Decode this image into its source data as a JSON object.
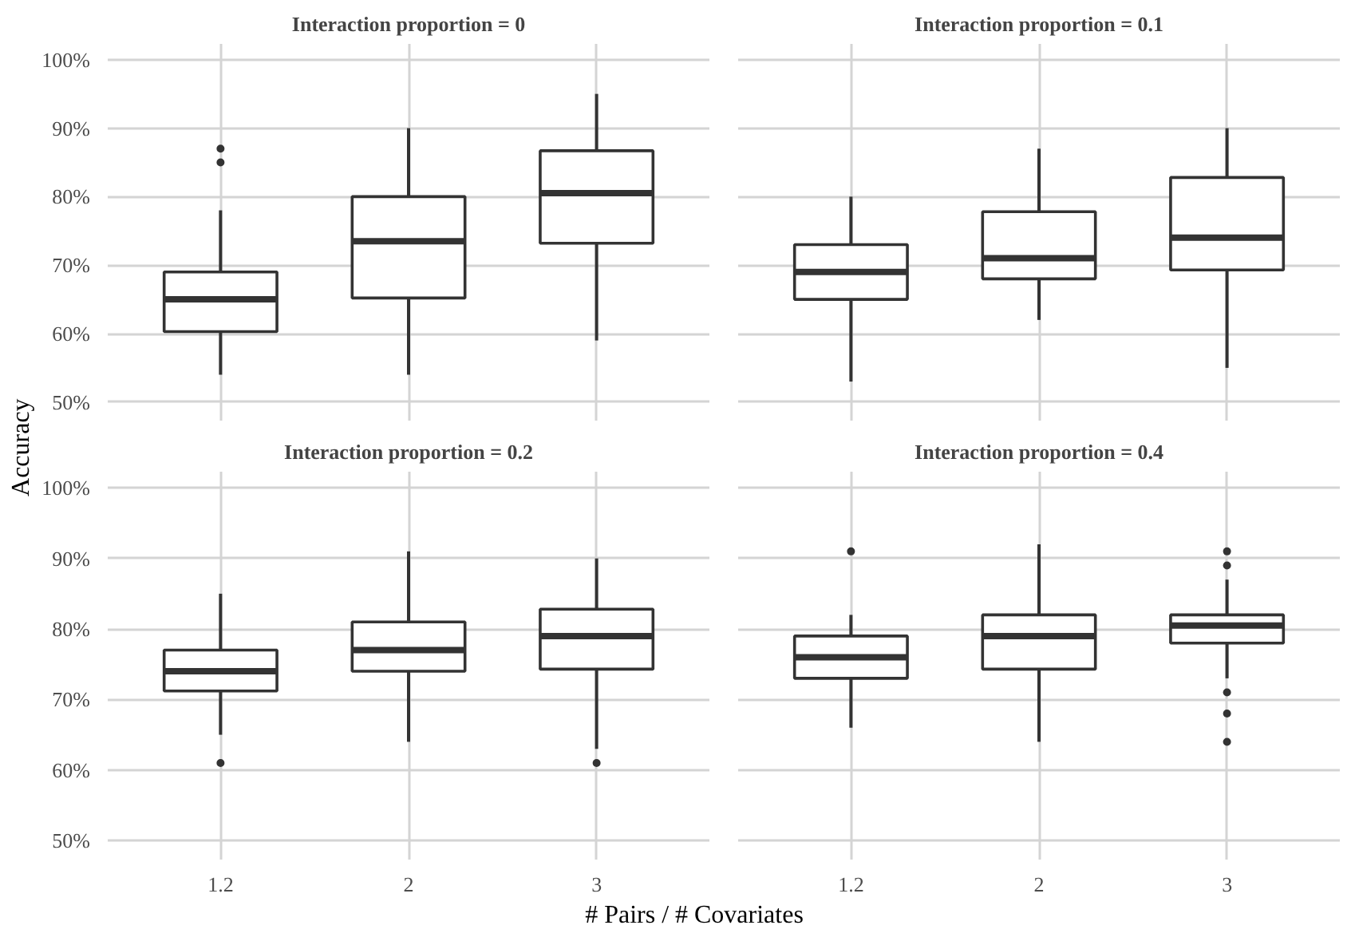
{
  "chart_data": [
    {
      "type": "box",
      "title": "Interaction proportion = 0",
      "ylabel": "Accuracy",
      "categories": [
        "1.2",
        "2",
        "3"
      ],
      "ylim": [
        47.3,
        102.3
      ],
      "yticks": [
        {
          "value": 50,
          "label": "50%"
        },
        {
          "value": 60,
          "label": "60%"
        },
        {
          "value": 70,
          "label": "70%"
        },
        {
          "value": 80,
          "label": "80%"
        },
        {
          "value": 90,
          "label": "90%"
        },
        {
          "value": 100,
          "label": "100%"
        }
      ],
      "grid": true,
      "tick_labels": "y",
      "boxes": [
        {
          "low": 54,
          "q1": 60.3,
          "median": 65,
          "q3": 69,
          "high": 78,
          "outliers": [
            85,
            87
          ]
        },
        {
          "low": 54,
          "q1": 65.2,
          "median": 73.5,
          "q3": 80,
          "high": 90
        },
        {
          "low": 59,
          "q1": 73.2,
          "median": 80.5,
          "q3": 86.7,
          "high": 95
        }
      ]
    },
    {
      "type": "box",
      "title": "Interaction proportion = 0.1",
      "categories": [
        "1.2",
        "2",
        "3"
      ],
      "ylim": [
        47.3,
        102.3
      ],
      "yticks": [
        50,
        60,
        70,
        80,
        90,
        100
      ],
      "grid": true,
      "tick_labels": false,
      "boxes": [
        {
          "low": 53,
          "q1": 65,
          "median": 69,
          "q3": 73,
          "high": 80
        },
        {
          "low": 62,
          "q1": 68,
          "median": 71,
          "q3": 77.8,
          "high": 87
        },
        {
          "low": 55,
          "q1": 69.3,
          "median": 74,
          "q3": 82.8,
          "high": 90
        }
      ]
    },
    {
      "type": "box",
      "title": "Interaction proportion = 0.2",
      "xlabel": "# Pairs / # Covariates",
      "categories": [
        "1.2",
        "2",
        "3"
      ],
      "ylim": [
        47.3,
        102.3
      ],
      "yticks": [
        {
          "value": 50,
          "label": "50%"
        },
        {
          "value": 60,
          "label": "60%"
        },
        {
          "value": 70,
          "label": "70%"
        },
        {
          "value": 80,
          "label": "80%"
        },
        {
          "value": 90,
          "label": "90%"
        },
        {
          "value": 100,
          "label": "100%"
        }
      ],
      "grid": true,
      "boxes": [
        {
          "low": 65,
          "q1": 71.2,
          "median": 74,
          "q3": 77,
          "high": 85,
          "outliers": [
            61
          ]
        },
        {
          "low": 64,
          "q1": 74,
          "median": 77,
          "q3": 81,
          "high": 91
        },
        {
          "low": 63,
          "q1": 74.3,
          "median": 79,
          "q3": 82.8,
          "high": 90,
          "outliers": [
            61
          ]
        }
      ]
    },
    {
      "type": "box",
      "title": "Interaction proportion = 0.4",
      "categories": [
        "1.2",
        "2",
        "3"
      ],
      "ylim": [
        47.3,
        102.3
      ],
      "yticks": [
        50,
        60,
        70,
        80,
        90,
        100
      ],
      "grid": true,
      "tick_labels": "x",
      "boxes": [
        {
          "low": 66,
          "q1": 73,
          "median": 76,
          "q3": 79,
          "high": 82,
          "outliers": [
            91
          ]
        },
        {
          "low": 64,
          "q1": 74.3,
          "median": 79,
          "q3": 82,
          "high": 92
        },
        {
          "low": 73,
          "q1": 78,
          "median": 80.5,
          "q3": 82,
          "high": 87,
          "outliers": [
            91,
            89,
            71,
            68,
            64
          ]
        }
      ]
    }
  ]
}
